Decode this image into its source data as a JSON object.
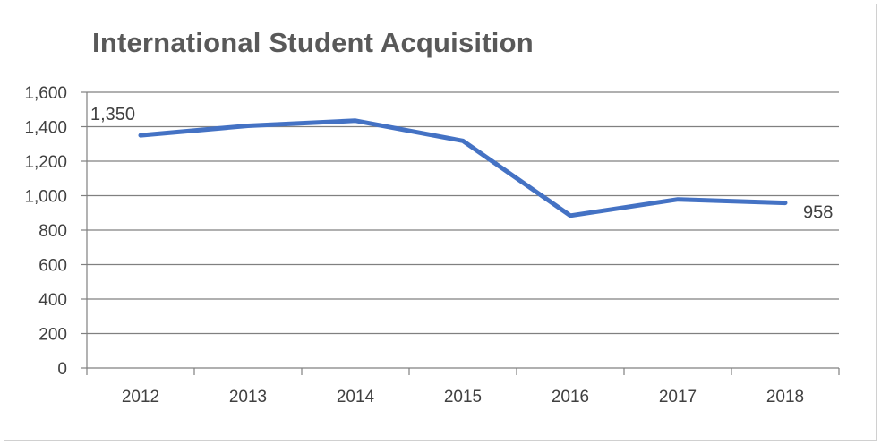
{
  "chart_data": {
    "type": "line",
    "title": "International Student Acquisition",
    "xlabel": "",
    "ylabel": "",
    "categories": [
      "2012",
      "2013",
      "2014",
      "2015",
      "2016",
      "2017",
      "2018"
    ],
    "series": [
      {
        "values": [
          1350,
          1405,
          1435,
          1318,
          884,
          978,
          958
        ],
        "color": "#4472C4"
      }
    ],
    "ylim": [
      0,
      1600
    ],
    "yticks": [
      0,
      200,
      400,
      600,
      800,
      1000,
      1200,
      1400,
      1600
    ],
    "ytick_labels": [
      "0",
      "200",
      "400",
      "600",
      "800",
      "1,000",
      "1,200",
      "1,400",
      "1,600"
    ],
    "grid": true,
    "legend": "none",
    "data_labels": [
      {
        "index": 0,
        "text": "1,350"
      },
      {
        "index": 6,
        "text": "958"
      }
    ],
    "gridline_color": "#808080",
    "axis_text_color": "#404040",
    "title_color": "#595959"
  }
}
